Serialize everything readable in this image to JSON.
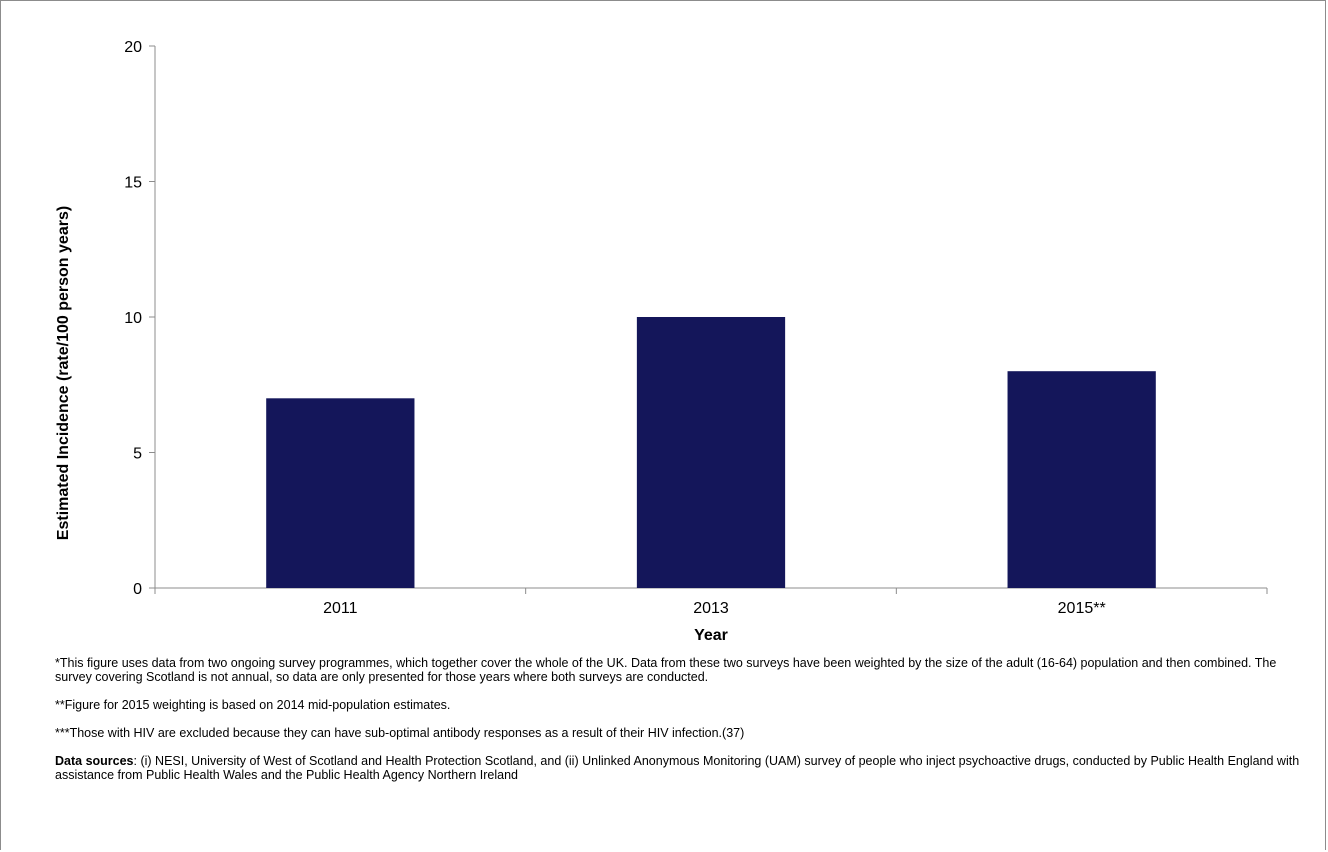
{
  "chart_data": {
    "type": "bar",
    "categories": [
      "2011",
      "2013",
      "2015**"
    ],
    "values": [
      7,
      10,
      8
    ],
    "xlabel": "Year",
    "ylabel": "Estimated Incidence (rate/100 person years)",
    "ylim": [
      0,
      20
    ],
    "yticks": [
      "0",
      "5",
      "10",
      "15",
      "20"
    ],
    "grid": false,
    "bar_color": "#14165a"
  },
  "notes": {
    "note1": "*This figure uses data from two ongoing survey programmes, which together cover the whole of the UK. Data from these two surveys have been weighted by the size of the adult (16-64) population and then combined. The survey covering Scotland is not annual, so data are only presented for those years where both surveys are conducted.",
    "note2": "**Figure for 2015 weighting is based on 2014 mid-population estimates.",
    "note3": "***Those with HIV are excluded because they can have sub-optimal antibody responses as a result of their HIV infection.(37)",
    "sources_label": "Data sources",
    "sources_text": ": (i) NESI, University of West of Scotland and Health Protection Scotland, and (ii) Unlinked Anonymous Monitoring (UAM) survey of people who inject psychoactive drugs, conducted by Public Health England with assistance from Public Health Wales and the Public Health Agency Northern Ireland"
  }
}
